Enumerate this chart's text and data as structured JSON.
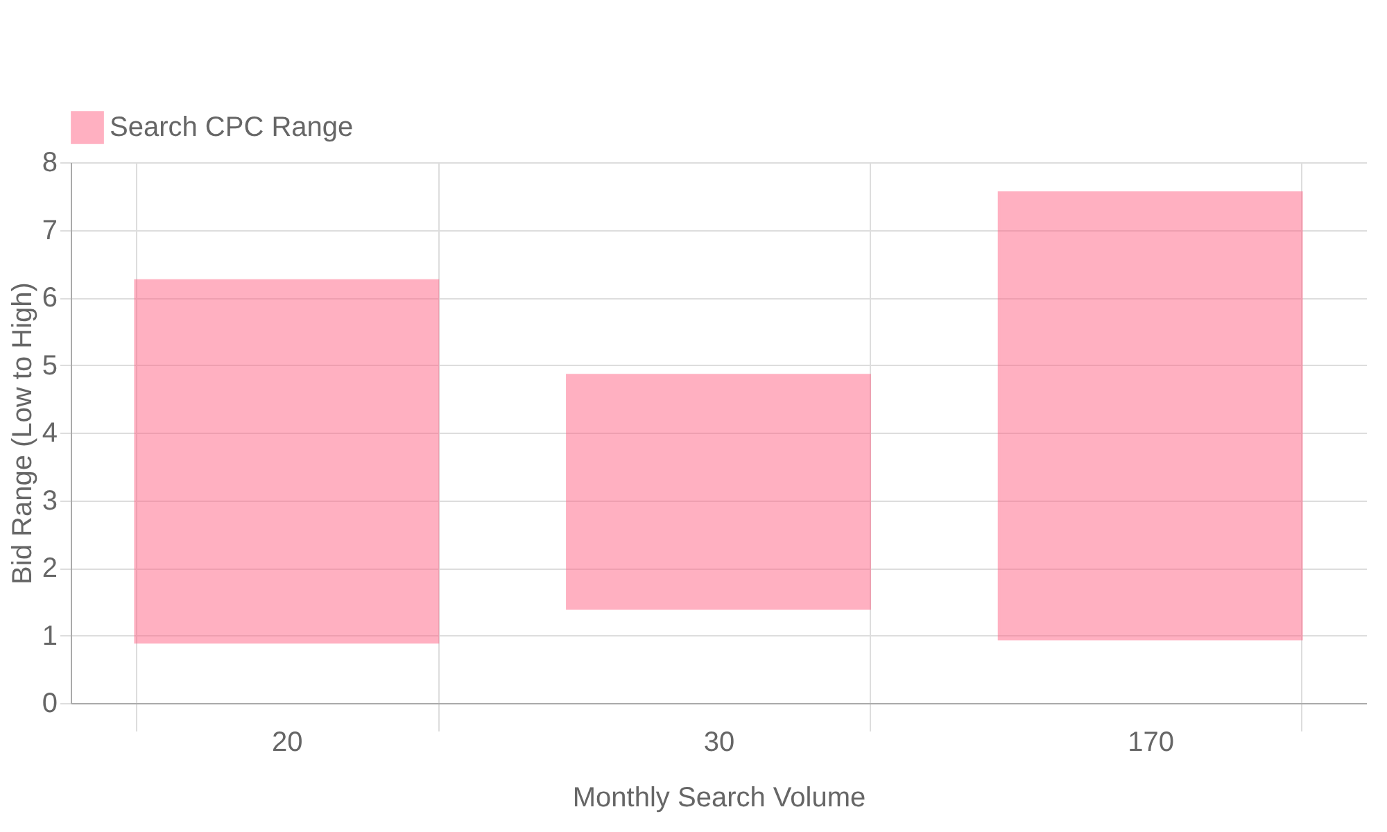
{
  "chart_data": {
    "type": "bar",
    "xlabel": "Monthly Search Volume",
    "ylabel": "Bid Range (Low to High)",
    "categories": [
      "20",
      "30",
      "170"
    ],
    "series": [
      {
        "name": "Search CPC Range",
        "color": "#ff6384",
        "base": [
          0.9,
          1.4,
          0.95
        ],
        "values": [
          5.35,
          3.45,
          6.6
        ]
      }
    ],
    "ylim": [
      0,
      8
    ],
    "yticks": [
      0,
      1,
      2,
      3,
      4,
      5,
      6,
      7,
      8
    ],
    "grid": true,
    "legend": "top"
  }
}
